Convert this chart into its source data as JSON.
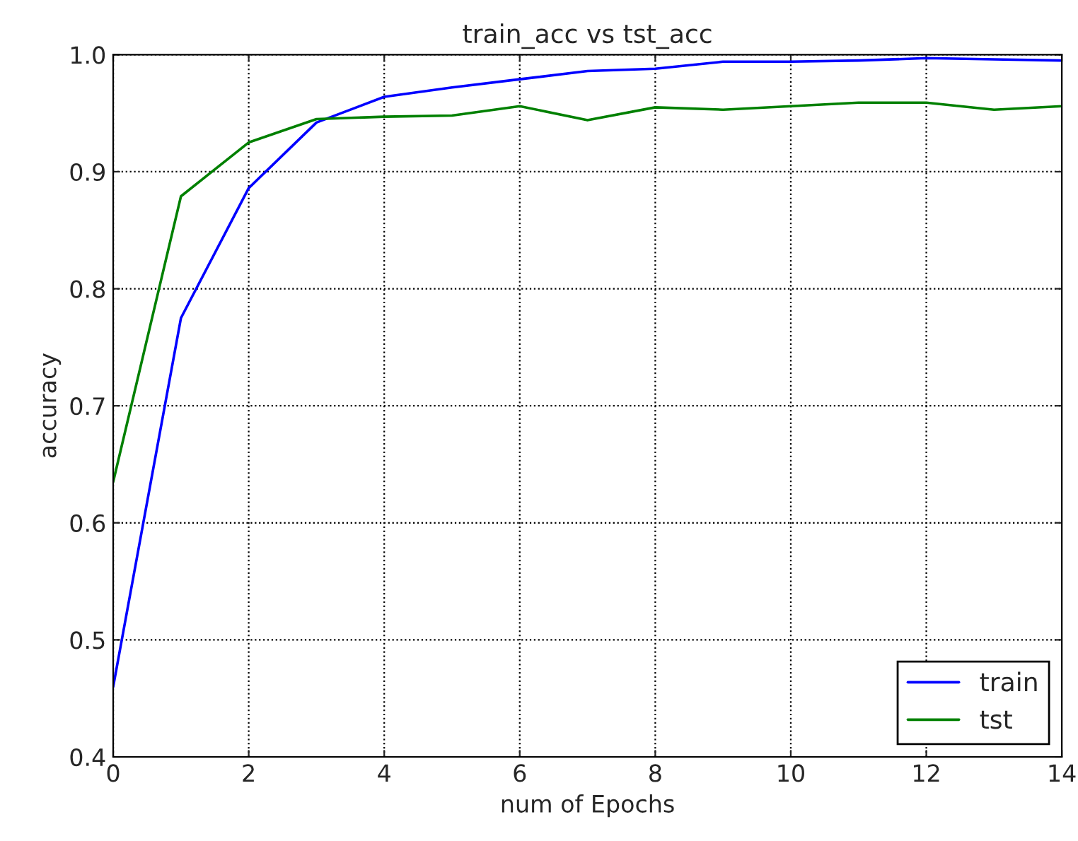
{
  "chart_data": {
    "type": "line",
    "title": "train_acc vs tst_acc",
    "xlabel": "num of Epochs",
    "ylabel": "accuracy",
    "x": [
      0,
      1,
      2,
      3,
      4,
      5,
      6,
      7,
      8,
      9,
      10,
      11,
      12,
      13,
      14
    ],
    "series": [
      {
        "name": "train",
        "color": "#0000ff",
        "values": [
          0.46,
          0.775,
          0.886,
          0.942,
          0.964,
          0.972,
          0.979,
          0.986,
          0.988,
          0.994,
          0.994,
          0.995,
          0.997,
          0.996,
          0.995
        ]
      },
      {
        "name": "tst",
        "color": "#008000",
        "values": [
          0.635,
          0.879,
          0.925,
          0.945,
          0.947,
          0.948,
          0.956,
          0.944,
          0.955,
          0.953,
          0.956,
          0.959,
          0.959,
          0.953,
          0.956
        ]
      }
    ],
    "xlim": [
      0,
      14
    ],
    "xticks": [
      0,
      2,
      4,
      6,
      8,
      10,
      12,
      14
    ],
    "ylim": [
      0.4,
      1.0
    ],
    "yticks": [
      0.4,
      0.5,
      0.6,
      0.7,
      0.8,
      0.9,
      {
        "value": 1.0,
        "label": "1.0"
      }
    ],
    "grid": true,
    "legend": "bottom right",
    "line_style": "solid"
  }
}
